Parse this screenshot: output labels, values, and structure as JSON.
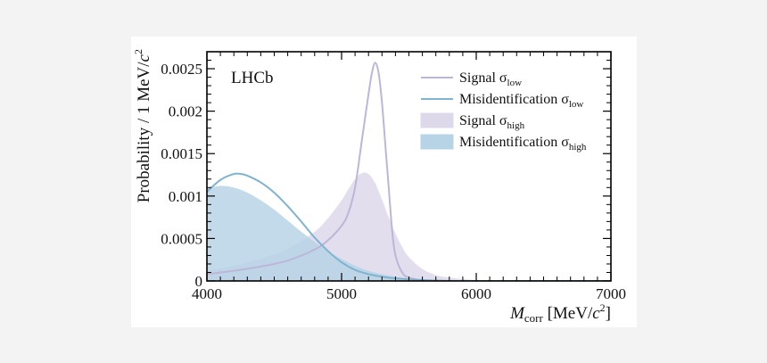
{
  "chart_data": {
    "type": "area",
    "xlabel": {
      "main": "M",
      "sub": "corr",
      "unit_pre": " [MeV/",
      "unit_c": "c",
      "unit_sup": "2",
      "unit_post": "]"
    },
    "ylabel": {
      "main": "Probability / 1 MeV/",
      "unit_c": "c",
      "unit_sup": "2"
    },
    "xlim": [
      4000,
      7000
    ],
    "ylim": [
      0,
      0.0027
    ],
    "xticks": [
      4000,
      5000,
      6000,
      7000
    ],
    "xtick_labels": [
      "4000",
      "5000",
      "6000",
      "7000"
    ],
    "yticks": [
      0,
      0.0005,
      0.001,
      0.0015,
      0.002,
      0.0025
    ],
    "ytick_labels": [
      "0",
      "0.0005",
      "0.001",
      "0.0015",
      "0.002",
      "0.0025"
    ],
    "annotation": "LHCb",
    "legend_position": "top-right",
    "series": [
      {
        "name": "Signal σlow",
        "label_main": "Signal σ",
        "label_sub": "low",
        "style": "line",
        "color": "#bdb6d6",
        "x": [
          4000,
          4200,
          4400,
          4600,
          4800,
          4900,
          5000,
          5050,
          5100,
          5150,
          5200,
          5225,
          5250,
          5275,
          5300,
          5325,
          5350,
          5375,
          5400,
          5450,
          5500,
          5600,
          5800,
          6000,
          7000
        ],
        "y": [
          8e-05,
          0.00012,
          0.00017,
          0.00024,
          0.00037,
          0.00048,
          0.00065,
          0.0008,
          0.0011,
          0.00165,
          0.0022,
          0.00245,
          0.00257,
          0.00245,
          0.0021,
          0.0016,
          0.0011,
          0.0006,
          0.0003,
          0.0001,
          4e-05,
          1e-05,
          0,
          0,
          0
        ]
      },
      {
        "name": "Misidentification σlow",
        "label_main": "Misidentification σ",
        "label_sub": "low",
        "style": "line",
        "color": "#7fb3cf",
        "x": [
          4000,
          4100,
          4200,
          4250,
          4300,
          4400,
          4500,
          4600,
          4700,
          4800,
          4900,
          5000,
          5100,
          5200,
          5300,
          5400,
          5500,
          5600,
          5800,
          6000,
          6500,
          7000
        ],
        "y": [
          0.00105,
          0.00119,
          0.00126,
          0.00126,
          0.00124,
          0.00116,
          0.00104,
          0.00088,
          0.0007,
          0.00051,
          0.00035,
          0.00022,
          0.00013,
          8e-05,
          5e-05,
          3e-05,
          2e-05,
          1e-05,
          0,
          0,
          0,
          0
        ]
      },
      {
        "name": "Signal σhigh",
        "label_main": "Signal σ",
        "label_sub": "high",
        "style": "fill",
        "color": "#ddd8ea",
        "x": [
          4000,
          4200,
          4400,
          4600,
          4800,
          4900,
          5000,
          5050,
          5100,
          5150,
          5200,
          5250,
          5300,
          5350,
          5400,
          5450,
          5500,
          5600,
          5700,
          5800,
          6000,
          6200,
          6500,
          7000
        ],
        "y": [
          0.00012,
          0.00018,
          0.00026,
          0.00038,
          0.00058,
          0.00074,
          0.00095,
          0.00108,
          0.0012,
          0.00127,
          0.00126,
          0.00115,
          0.00096,
          0.00075,
          0.00056,
          0.0004,
          0.00028,
          0.00014,
          7e-05,
          4e-05,
          1e-05,
          0,
          0,
          0
        ]
      },
      {
        "name": "Misidentification σhigh",
        "label_main": "Misidentification σ",
        "label_sub": "high",
        "style": "fill",
        "color": "#b7d3e6",
        "x": [
          4000,
          4100,
          4200,
          4300,
          4400,
          4500,
          4600,
          4700,
          4800,
          4900,
          5000,
          5100,
          5200,
          5300,
          5400,
          5500,
          5600,
          5800,
          6000,
          6500,
          7000
        ],
        "y": [
          0.00109,
          0.00112,
          0.0011,
          0.00104,
          0.00095,
          0.00084,
          0.00071,
          0.00058,
          0.00046,
          0.00035,
          0.00026,
          0.00018,
          0.00012,
          8e-05,
          5e-05,
          3e-05,
          2e-05,
          1e-05,
          0,
          0,
          0
        ]
      }
    ]
  }
}
